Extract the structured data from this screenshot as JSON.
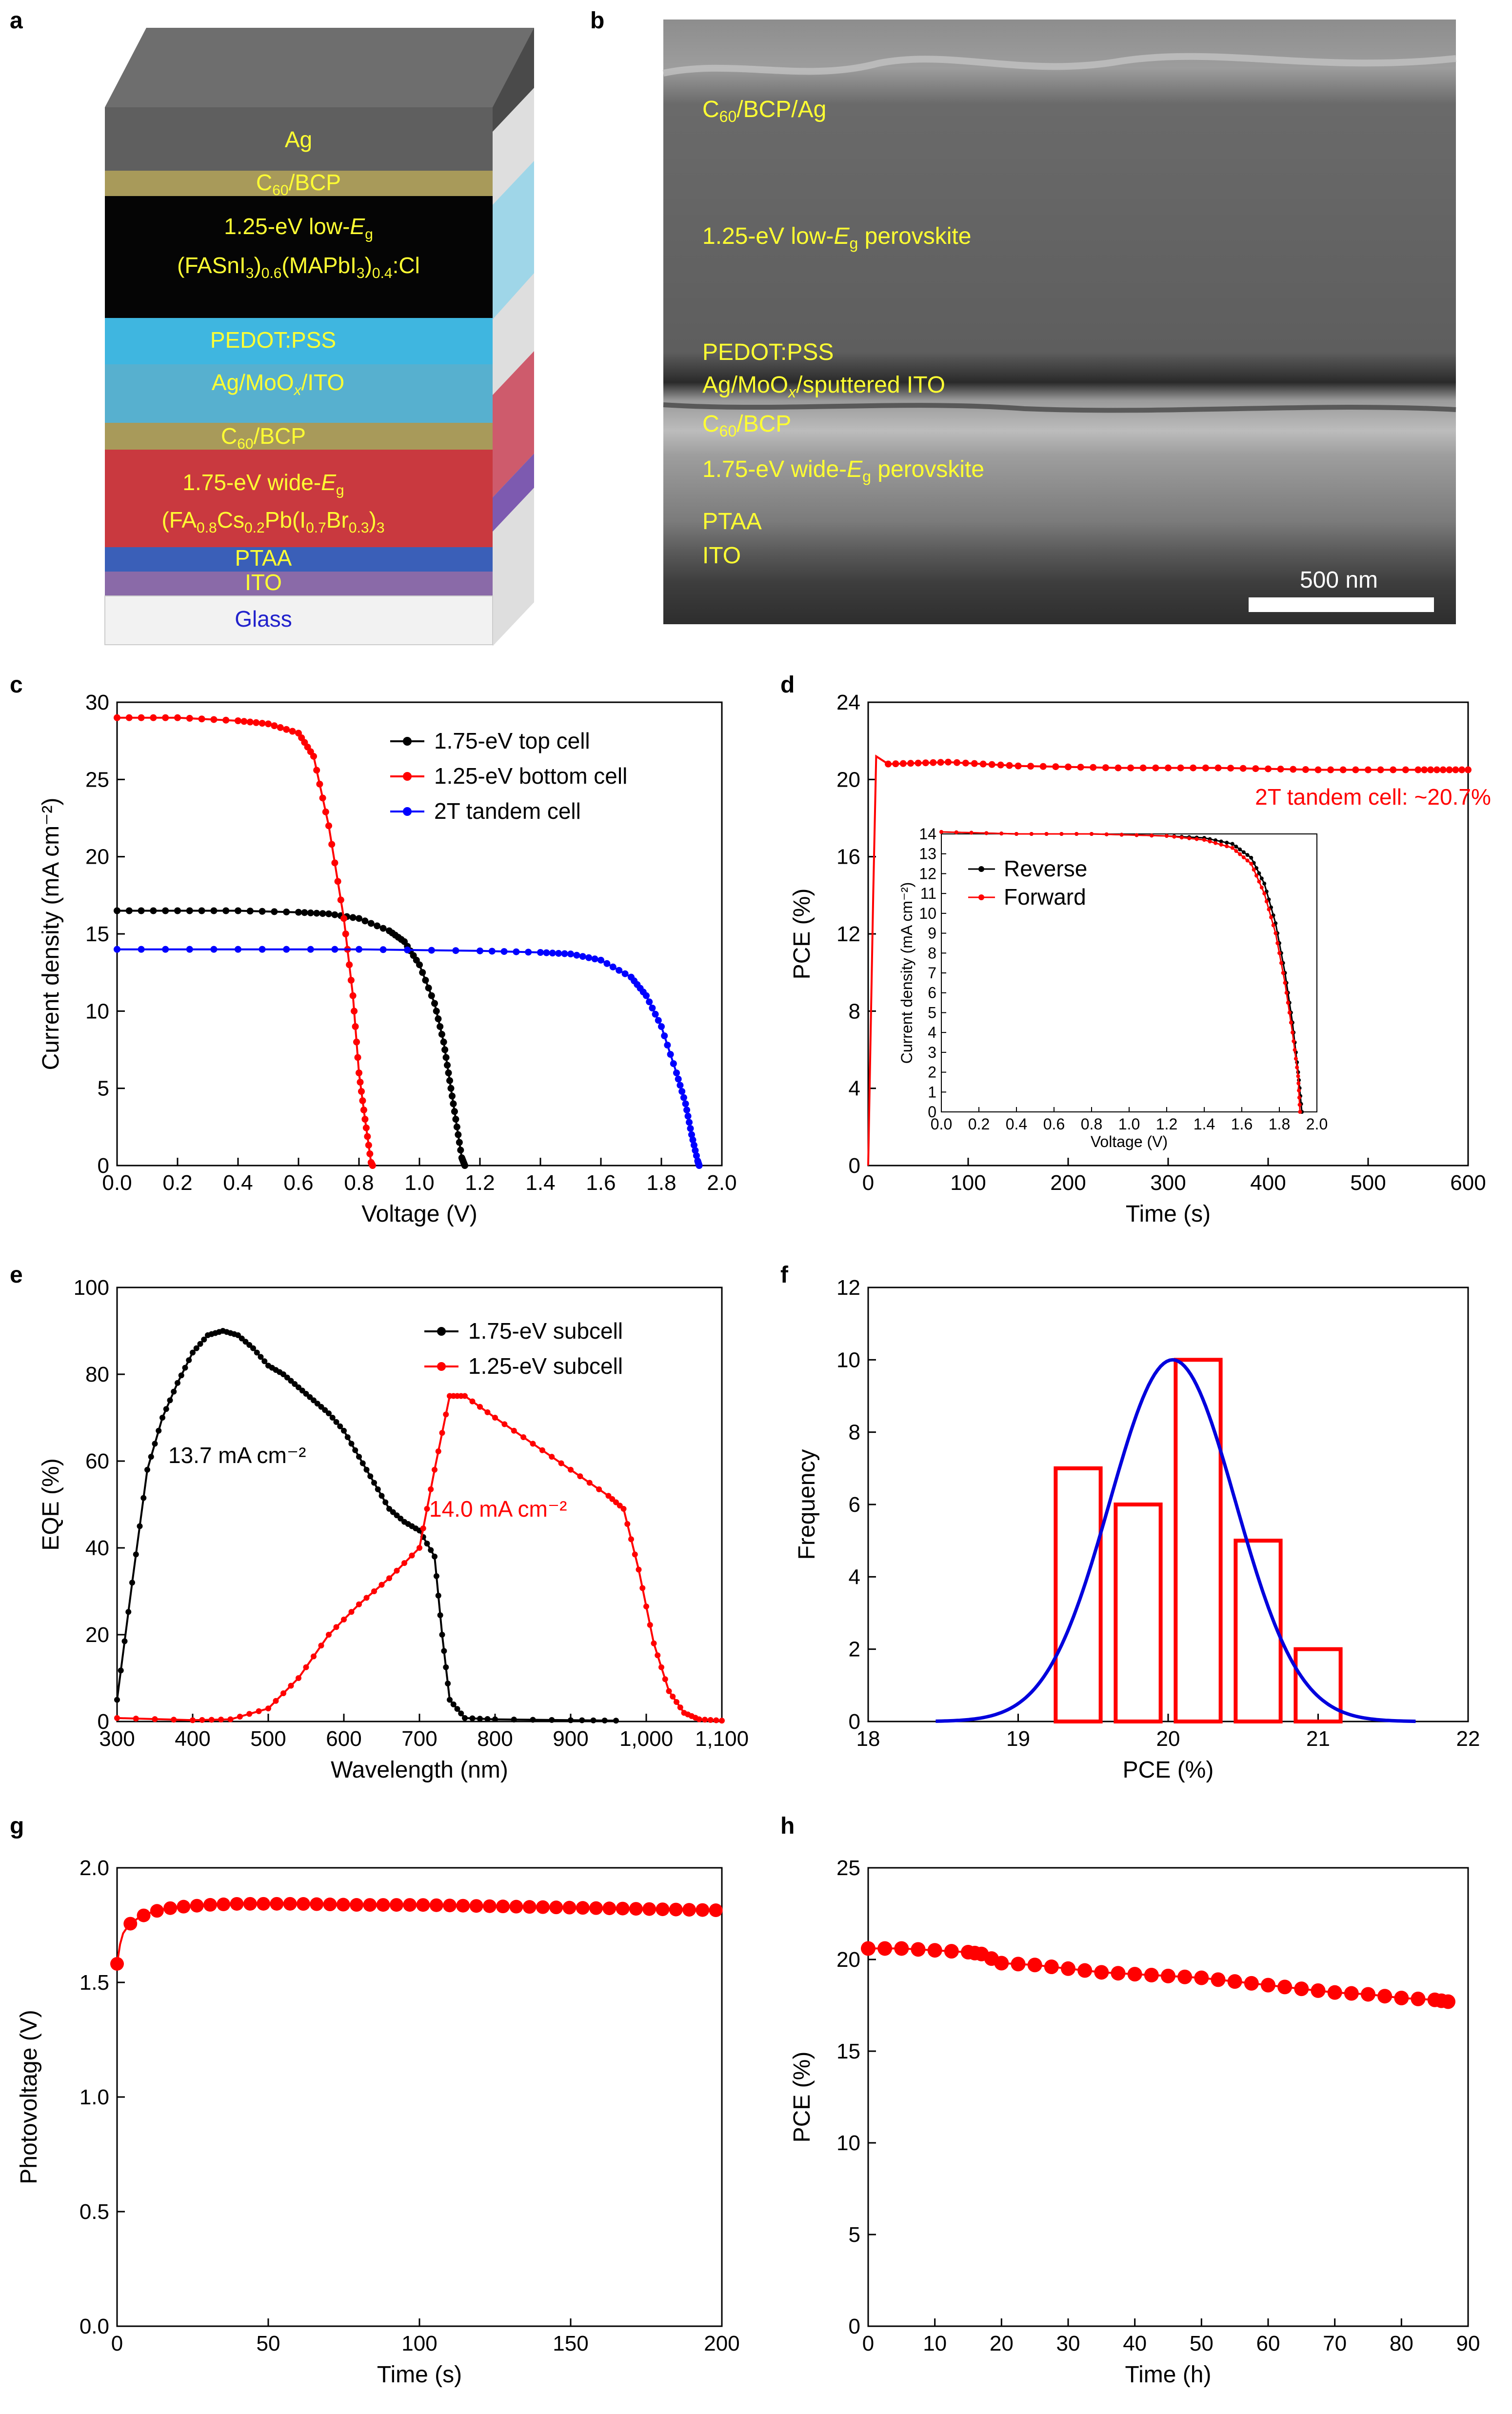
{
  "panel_a": {
    "letter": "a",
    "layers": [
      {
        "label": "Ag",
        "color": "#5f5f5f",
        "text_color": "#ffff33"
      },
      {
        "label": "C60/BCP",
        "color": "#a89a5a",
        "text_color": "#ffff33"
      },
      {
        "label": "1.25-eV low-Eg (FASnI3)0.6(MAPbI3)0.4:Cl",
        "color": "#050505",
        "text_color": "#ffff33"
      },
      {
        "label": "PEDOT:PSS",
        "color": "#3fb6e0",
        "text_color": "#ffff33"
      },
      {
        "label": "Ag/MoOx/ITO",
        "color": "#4aa9c9",
        "text_color": "#ffff33"
      },
      {
        "label": "C60/BCP",
        "color": "#a89a5a",
        "text_color": "#ffff33"
      },
      {
        "label": "1.75-eV wide-Eg (FA0.8Cs0.2Pb(I0.7Br0.3)3",
        "color": "#c9393f",
        "text_color": "#ffff33"
      },
      {
        "label": "PTAA",
        "color": "#3a5fb8",
        "text_color": "#ffff33"
      },
      {
        "label": "ITO",
        "color": "#8a6aa8",
        "text_color": "#ffff33"
      },
      {
        "label": "Glass",
        "color": "#f2f2f2",
        "text_color": "#2222cc"
      }
    ]
  },
  "panel_b": {
    "letter": "b",
    "labels": [
      "C60/BCP/Ag",
      "1.25-eV low-Eg perovskite",
      "PEDOT:PSS",
      "Ag/MoOx/sputtered ITO",
      "C60/BCP",
      "1.75-eV wide-Eg perovskite",
      "PTAA",
      "ITO"
    ],
    "scale_bar": "500 nm"
  },
  "chart_data": [
    {
      "id": "c",
      "type": "line",
      "letter": "c",
      "xlabel": "Voltage (V)",
      "ylabel": "Current density (mA cm⁻²)",
      "xlim": [
        0,
        2.0
      ],
      "ylim": [
        0,
        30
      ],
      "xticks": [
        "0.0",
        "0.2",
        "0.4",
        "0.6",
        "0.8",
        "1.0",
        "1.2",
        "1.4",
        "1.6",
        "1.8",
        "2.0"
      ],
      "yticks": [
        "0",
        "5",
        "10",
        "15",
        "20",
        "25",
        "30"
      ],
      "series": [
        {
          "name": "1.75-eV top cell",
          "color": "#000000",
          "points": [
            [
              0,
              16.5
            ],
            [
              0.2,
              16.5
            ],
            [
              0.4,
              16.5
            ],
            [
              0.6,
              16.4
            ],
            [
              0.7,
              16.3
            ],
            [
              0.8,
              16.0
            ],
            [
              0.9,
              15.2
            ],
            [
              0.95,
              14.5
            ],
            [
              1.0,
              13.0
            ],
            [
              1.05,
              10.5
            ],
            [
              1.08,
              8.0
            ],
            [
              1.1,
              5.5
            ],
            [
              1.12,
              3.0
            ],
            [
              1.14,
              0.5
            ],
            [
              1.15,
              0
            ]
          ]
        },
        {
          "name": "1.25-eV bottom cell",
          "color": "#ff0000",
          "points": [
            [
              0,
              29.0
            ],
            [
              0.2,
              29.0
            ],
            [
              0.4,
              28.8
            ],
            [
              0.5,
              28.6
            ],
            [
              0.6,
              28.0
            ],
            [
              0.65,
              26.5
            ],
            [
              0.7,
              22.0
            ],
            [
              0.75,
              16.0
            ],
            [
              0.78,
              11.0
            ],
            [
              0.8,
              6.0
            ],
            [
              0.82,
              3.0
            ],
            [
              0.84,
              0.2
            ],
            [
              0.845,
              0
            ]
          ]
        },
        {
          "name": "2T tandem cell",
          "color": "#0000ff",
          "points": [
            [
              0,
              14.0
            ],
            [
              0.4,
              14.0
            ],
            [
              0.8,
              14.0
            ],
            [
              1.2,
              13.9
            ],
            [
              1.4,
              13.8
            ],
            [
              1.5,
              13.7
            ],
            [
              1.6,
              13.3
            ],
            [
              1.7,
              12.2
            ],
            [
              1.75,
              11.0
            ],
            [
              1.8,
              9.0
            ],
            [
              1.85,
              6.0
            ],
            [
              1.88,
              4.0
            ],
            [
              1.9,
              2.0
            ],
            [
              1.92,
              0.3
            ],
            [
              1.925,
              0
            ]
          ]
        }
      ],
      "legend_position": "top-right"
    },
    {
      "id": "d",
      "type": "line",
      "letter": "d",
      "xlabel": "Time (s)",
      "ylabel": "PCE (%)",
      "xlim": [
        0,
        600
      ],
      "ylim": [
        0,
        24
      ],
      "xticks": [
        "0",
        "100",
        "200",
        "300",
        "400",
        "500",
        "600"
      ],
      "yticks": [
        "0",
        "4",
        "8",
        "12",
        "16",
        "20",
        "24"
      ],
      "series": [
        {
          "name": "2T tandem cell",
          "color": "#ff0000",
          "points": [
            [
              0,
              0
            ],
            [
              5,
              14
            ],
            [
              8,
              21.2
            ],
            [
              20,
              20.8
            ],
            [
              80,
              20.9
            ],
            [
              150,
              20.7
            ],
            [
              250,
              20.6
            ],
            [
              350,
              20.6
            ],
            [
              450,
              20.5
            ],
            [
              550,
              20.5
            ],
            [
              600,
              20.5
            ]
          ]
        }
      ],
      "annotation": "2T tandem cell: ~20.7%",
      "inset": {
        "xlabel": "Voltage (V)",
        "ylabel": "Current density (mA cm⁻²)",
        "xlim": [
          0,
          2.0
        ],
        "ylim": [
          0,
          14
        ],
        "xticks": [
          "0.0",
          "0.2",
          "0.4",
          "0.6",
          "0.8",
          "1.0",
          "1.2",
          "1.4",
          "1.6",
          "1.8",
          "2.0"
        ],
        "yticks": [
          "0",
          "1",
          "2",
          "3",
          "4",
          "5",
          "6",
          "7",
          "8",
          "9",
          "10",
          "11",
          "12",
          "13",
          "14"
        ],
        "series": [
          {
            "name": "Reverse",
            "color": "#000000",
            "points": [
              [
                0,
                14.1
              ],
              [
                0.4,
                14.0
              ],
              [
                0.8,
                14.0
              ],
              [
                1.2,
                13.9
              ],
              [
                1.4,
                13.8
              ],
              [
                1.55,
                13.5
              ],
              [
                1.65,
                12.8
              ],
              [
                1.72,
                11.5
              ],
              [
                1.78,
                9.5
              ],
              [
                1.83,
                7.0
              ],
              [
                1.87,
                4.5
              ],
              [
                1.9,
                2.0
              ],
              [
                1.92,
                0
              ]
            ]
          },
          {
            "name": "Forward",
            "color": "#ff0000",
            "points": [
              [
                0,
                14.1
              ],
              [
                0.4,
                14.0
              ],
              [
                0.8,
                14.0
              ],
              [
                1.2,
                13.9
              ],
              [
                1.4,
                13.7
              ],
              [
                1.55,
                13.3
              ],
              [
                1.65,
                12.5
              ],
              [
                1.72,
                11.0
              ],
              [
                1.78,
                9.0
              ],
              [
                1.83,
                6.5
              ],
              [
                1.87,
                4.0
              ],
              [
                1.9,
                1.8
              ],
              [
                1.91,
                0
              ]
            ]
          }
        ]
      }
    },
    {
      "id": "e",
      "type": "line",
      "letter": "e",
      "xlabel": "Wavelength (nm)",
      "ylabel": "EQE (%)",
      "xlim": [
        300,
        1100
      ],
      "ylim": [
        0,
        100
      ],
      "xticks": [
        "300",
        "400",
        "500",
        "600",
        "700",
        "800",
        "900",
        "1,000",
        "1,100"
      ],
      "yticks": [
        "0",
        "20",
        "40",
        "60",
        "80",
        "100"
      ],
      "series": [
        {
          "name": "1.75-eV subcell",
          "color": "#000000",
          "points": [
            [
              300,
              5
            ],
            [
              320,
              32
            ],
            [
              340,
              58
            ],
            [
              360,
              70
            ],
            [
              380,
              78
            ],
            [
              400,
              85
            ],
            [
              420,
              89
            ],
            [
              440,
              90
            ],
            [
              460,
              89
            ],
            [
              480,
              86
            ],
            [
              500,
              82
            ],
            [
              520,
              80
            ],
            [
              540,
              77
            ],
            [
              560,
              74
            ],
            [
              580,
              71
            ],
            [
              600,
              67
            ],
            [
              620,
              61
            ],
            [
              640,
              55
            ],
            [
              660,
              49
            ],
            [
              680,
              46
            ],
            [
              700,
              44
            ],
            [
              720,
              38
            ],
            [
              730,
              20
            ],
            [
              740,
              5
            ],
            [
              760,
              0.8
            ],
            [
              800,
              0.5
            ],
            [
              900,
              0.3
            ],
            [
              960,
              0.2
            ]
          ]
        },
        {
          "name": "1.25-eV subcell",
          "color": "#ff0000",
          "points": [
            [
              300,
              0.8
            ],
            [
              400,
              0.3
            ],
            [
              450,
              0.5
            ],
            [
              500,
              3
            ],
            [
              540,
              10
            ],
            [
              580,
              20
            ],
            [
              620,
              27
            ],
            [
              660,
              33
            ],
            [
              700,
              40
            ],
            [
              720,
              58
            ],
            [
              740,
              75
            ],
            [
              760,
              75
            ],
            [
              800,
              70
            ],
            [
              850,
              64
            ],
            [
              900,
              58
            ],
            [
              950,
              52
            ],
            [
              970,
              49
            ],
            [
              990,
              35
            ],
            [
              1010,
              18
            ],
            [
              1030,
              7
            ],
            [
              1050,
              2
            ],
            [
              1070,
              0.5
            ],
            [
              1100,
              0.2
            ]
          ]
        }
      ],
      "annotations": [
        {
          "text": "13.7 mA cm⁻²",
          "color": "#000000"
        },
        {
          "text": "14.0 mA cm⁻²",
          "color": "#ff0000"
        }
      ]
    },
    {
      "id": "f",
      "type": "bar",
      "letter": "f",
      "xlabel": "PCE (%)",
      "ylabel": "Frequency",
      "xlim": [
        18,
        22
      ],
      "ylim": [
        0,
        12
      ],
      "xticks": [
        "18",
        "19",
        "20",
        "21",
        "22"
      ],
      "yticks": [
        "0",
        "2",
        "4",
        "6",
        "8",
        "10",
        "12"
      ],
      "bars": [
        {
          "x0": 19.25,
          "x1": 19.55,
          "count": 7
        },
        {
          "x0": 19.65,
          "x1": 19.95,
          "count": 6
        },
        {
          "x0": 20.05,
          "x1": 20.35,
          "count": 10
        },
        {
          "x0": 20.45,
          "x1": 20.75,
          "count": 5
        },
        {
          "x0": 20.85,
          "x1": 21.15,
          "count": 2
        }
      ],
      "fit": {
        "mean": 20.03,
        "sigma": 0.42,
        "peak": 10,
        "x_range": [
          18.45,
          21.65
        ],
        "color": "#0000dd"
      },
      "bar_color": "#ff0000"
    },
    {
      "id": "g",
      "type": "scatter",
      "letter": "g",
      "xlabel": "Time (s)",
      "ylabel": "Photovoltage (V)",
      "xlim": [
        0,
        200
      ],
      "ylim": [
        0,
        2.1
      ],
      "xticks": [
        "0",
        "50",
        "100",
        "150",
        "200"
      ],
      "yticks": [
        "0.0",
        "0.5",
        "1.0",
        "1.5",
        "2.0"
      ],
      "series": [
        {
          "name": "Photovoltage",
          "color": "#ff0000",
          "points": [
            [
              0,
              1.66
            ],
            [
              1,
              1.75
            ],
            [
              2,
              1.8
            ],
            [
              4,
              1.84
            ],
            [
              7,
              1.87
            ],
            [
              10,
              1.89
            ],
            [
              15,
              1.91
            ],
            [
              20,
              1.92
            ],
            [
              30,
              1.93
            ],
            [
              40,
              1.935
            ],
            [
              60,
              1.935
            ],
            [
              80,
              1.93
            ],
            [
              100,
              1.93
            ],
            [
              120,
              1.925
            ],
            [
              140,
              1.92
            ],
            [
              160,
              1.915
            ],
            [
              180,
              1.91
            ],
            [
              200,
              1.905
            ]
          ]
        }
      ]
    },
    {
      "id": "h",
      "type": "scatter",
      "letter": "h",
      "xlabel": "Time (h)",
      "ylabel": "PCE (%)",
      "xlim": [
        0,
        90
      ],
      "ylim": [
        0,
        25
      ],
      "xticks": [
        "0",
        "10",
        "20",
        "30",
        "40",
        "50",
        "60",
        "70",
        "80",
        "90"
      ],
      "yticks": [
        "0",
        "5",
        "10",
        "15",
        "20",
        "25"
      ],
      "series": [
        {
          "name": "PCE",
          "color": "#ff0000",
          "points": [
            [
              0,
              20.6
            ],
            [
              5,
              20.6
            ],
            [
              10,
              20.5
            ],
            [
              15,
              20.4
            ],
            [
              17,
              20.3
            ],
            [
              20,
              19.8
            ],
            [
              25,
              19.7
            ],
            [
              30,
              19.5
            ],
            [
              35,
              19.3
            ],
            [
              40,
              19.2
            ],
            [
              45,
              19.1
            ],
            [
              50,
              19.0
            ],
            [
              55,
              18.8
            ],
            [
              60,
              18.6
            ],
            [
              65,
              18.4
            ],
            [
              70,
              18.2
            ],
            [
              75,
              18.1
            ],
            [
              80,
              17.9
            ],
            [
              85,
              17.8
            ],
            [
              87,
              17.7
            ]
          ]
        }
      ]
    }
  ]
}
